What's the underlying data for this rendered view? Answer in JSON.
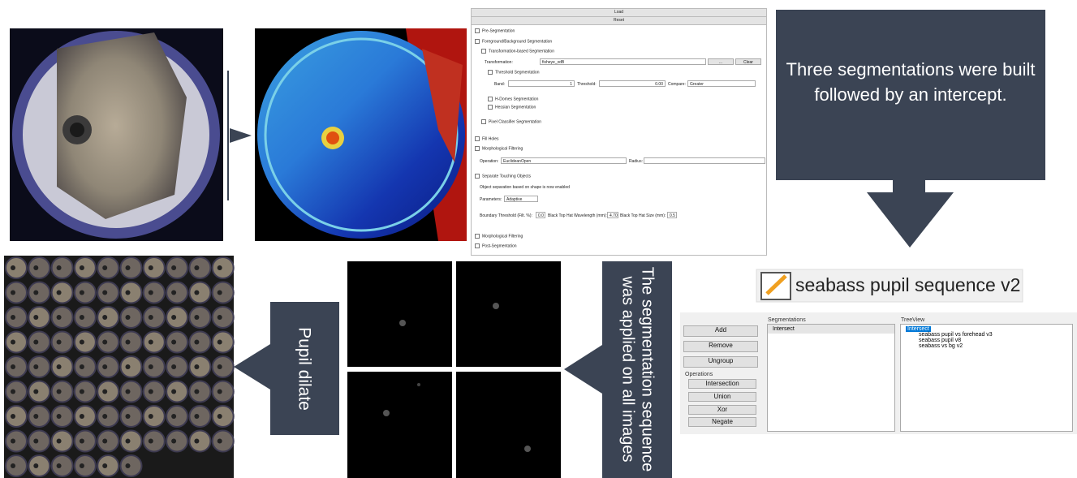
{
  "segmentation_panel": {
    "load": "Load",
    "reset": "Reset",
    "pre_segmentation": "Pre-Segmentation",
    "fg_bg_segmentation": "Foreground/Background Segmentation",
    "transformation_based": "Transformation-based Segmentation",
    "transformation_label": "Transformation:",
    "transformation_value": "fisheye_xdB",
    "browse": "...",
    "clear": "Clear",
    "threshold_segmentation": "Threshold Segmentation",
    "band_label": "Band:",
    "band_value": "1",
    "threshold_label": "Threshold:",
    "threshold_value": "0.00",
    "compare_label": "Compare:",
    "compare_value": "Greater",
    "h_domes": "H-Domes Segmentation",
    "hessian": "Hessian Segmentation",
    "pixel_classifier": "Pixel Classifier Segmentation",
    "fill_holes": "Fill Holes",
    "morphological_filtering": "Morphological Filtering",
    "operation_label": "Operation:",
    "operation_value": "EuclideanOpen",
    "radius_label": "Radius:",
    "separate_touching": "Separate Touching Objects",
    "separation_note": "Object separation based on shape is now enabled",
    "parameters_label": "Parameters:",
    "parameters_value": "Adaptive",
    "boundary_label": "Boundary Threshold (Filt. %):",
    "boundary_value": "0.0",
    "wavelength_label": "Black Top Hat Wavelength (mm):",
    "wavelength_value": "4.70",
    "size_label": "Black Top Hat Size (mm):",
    "size_value": "0.5",
    "morphological_filtering_2": "Morphological Filtering",
    "post_segmentation": "Post-Segmentation"
  },
  "callouts": {
    "three_segmentations": "Three segmentations were built followed by an intercept.",
    "sequence_applied": "The segmentation sequence was applied on all images",
    "pupil_dilate": "Pupil dilate"
  },
  "sequence_title": "seabass pupil sequence v2",
  "sequence_editor": {
    "buttons": [
      "Add",
      "Remove",
      "Ungroup"
    ],
    "operations_label": "Operations",
    "operations": [
      "Intersection",
      "Union",
      "Xor",
      "Negate"
    ],
    "segmentations_label": "Segmentations",
    "segmentations": [
      "Intersect"
    ],
    "treeview_label": "TreeView",
    "tree_root": "Intersect",
    "tree_children": [
      "seabass pupil vs forehead v3",
      "seabass pupil v8",
      "seabass vs bg v2"
    ]
  }
}
